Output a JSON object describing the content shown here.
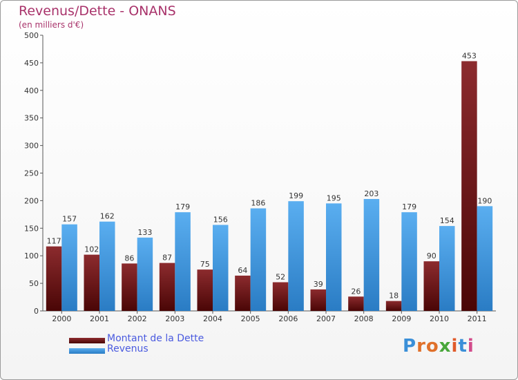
{
  "chart_data": {
    "type": "bar",
    "title": "Revenus/Dette - ONANS",
    "subtitle": "(en milliers d'€)",
    "categories": [
      "2000",
      "2001",
      "2002",
      "2003",
      "2004",
      "2005",
      "2006",
      "2007",
      "2008",
      "2009",
      "2010",
      "2011"
    ],
    "series": [
      {
        "name": "Montant de la Dette",
        "color": "#7a1f22",
        "values": [
          117,
          102,
          86,
          87,
          75,
          64,
          52,
          39,
          26,
          18,
          90,
          453
        ]
      },
      {
        "name": "Revenus",
        "color": "#4aa3e6",
        "values": [
          157,
          162,
          133,
          179,
          156,
          186,
          199,
          195,
          203,
          179,
          154,
          190
        ]
      }
    ],
    "ylim": [
      0,
      500
    ],
    "yticks": [
      0,
      50,
      100,
      150,
      200,
      250,
      300,
      350,
      400,
      450,
      500
    ],
    "grid": false,
    "legend_position": "bottom-left"
  },
  "logo": {
    "text": "Proxiti"
  }
}
